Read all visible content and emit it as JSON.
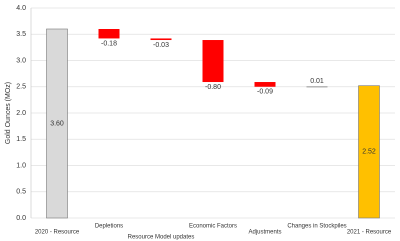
{
  "chart_data": {
    "type": "waterfall",
    "y_label": "Gold Ounces (MOz)",
    "categories": [
      "2020 - Resource",
      "Depletions",
      "Resource Model updates",
      "Economic Factors",
      "Adjustments",
      "Changes in Stockpiles",
      "2021 - Resource"
    ],
    "values": [
      3.6,
      -0.18,
      -0.03,
      -0.8,
      -0.09,
      0.01,
      2.52
    ],
    "value_labels": [
      "3.60",
      "-0.18",
      "-0.03",
      "-0.80",
      "-0.09",
      "0.01",
      "2.52"
    ],
    "colors": [
      "#d9d9d9",
      "#ff0000",
      "#ff0000",
      "#ff0000",
      "#ff0000",
      "#a5a5a5",
      "#ffc000"
    ],
    "ylim": [
      0,
      4
    ],
    "yticks": [
      {
        "value": 0,
        "label": "0.0"
      },
      0.5,
      {
        "value": 1,
        "label": "1.0"
      },
      1.5,
      {
        "value": 2,
        "label": "2.0"
      },
      2.5,
      {
        "value": 3,
        "label": "3.0"
      },
      3.5,
      {
        "value": 4,
        "label": "4.0"
      }
    ],
    "grid": true
  }
}
